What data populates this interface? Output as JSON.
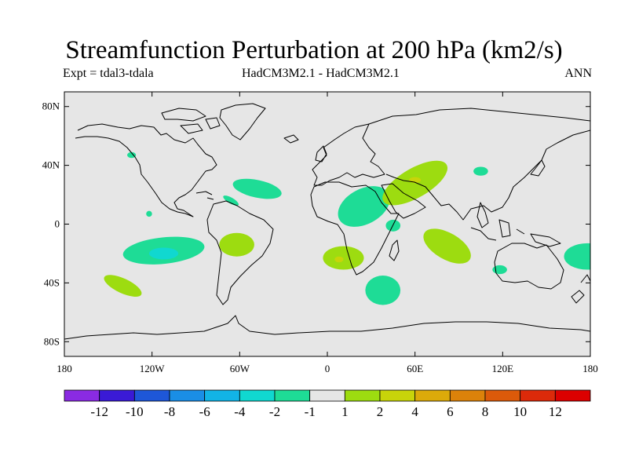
{
  "title": "Streamfunction Perturbation at 200 hPa (km2/s)",
  "subtitle_left": "Expt = tdal3-tdala",
  "subtitle_center": "HadCM3M2.1 - HadCM3M2.1",
  "subtitle_right": "ANN",
  "map": {
    "projection": "equirectangular",
    "lon_range": [
      -180,
      180
    ],
    "lat_range": [
      -90,
      90
    ],
    "background_color": "#e6e6e6",
    "coastline_color": "#000000",
    "lat_ticks": [
      80,
      40,
      0,
      -40,
      -80
    ],
    "lat_tick_labels": [
      "80N",
      "40N",
      "0",
      "40S",
      "80S"
    ],
    "lon_ticks": [
      -180,
      -120,
      -60,
      0,
      60,
      120,
      180
    ],
    "lon_tick_labels": [
      "180",
      "120W",
      "60W",
      "0",
      "60E",
      "120E",
      "180"
    ]
  },
  "chart_data": {
    "type": "heatmap",
    "title": "Streamfunction Perturbation at 200 hPa (km2/s)",
    "units": "km2/s",
    "colorbar_levels": [
      "-12",
      "-10",
      "-8",
      "-6",
      "-4",
      "-2",
      "-1",
      "1",
      "2",
      "4",
      "6",
      "8",
      "10",
      "12"
    ],
    "colorbar_colors": [
      "#8a2be2",
      "#3a1ad6",
      "#1e57d8",
      "#1a8ee6",
      "#12b4e6",
      "#10d8d0",
      "#1edc96",
      "#e6e6e6",
      "#9ddc10",
      "#c8d40a",
      "#dcaa0a",
      "#dc820a",
      "#dc5a0a",
      "#dc2a0a",
      "#dc0000"
    ],
    "regions": [
      {
        "label": "-1 to -2",
        "lon": 178,
        "lat": -22,
        "rx": 16,
        "ry": 9,
        "rot": 0,
        "color": "#1edc96"
      },
      {
        "label": "-1 to -2",
        "lon": -112,
        "lat": -18,
        "rx": 28,
        "ry": 9,
        "rot": 6,
        "color": "#1edc96"
      },
      {
        "label": "-2 to -4",
        "lon": -112,
        "lat": -20,
        "rx": 10,
        "ry": 4,
        "rot": 0,
        "color": "#10d8d0"
      },
      {
        "label": "1 to 2",
        "lon": -140,
        "lat": -42,
        "rx": 14,
        "ry": 5,
        "rot": -25,
        "color": "#9ddc10"
      },
      {
        "label": "1 to 2",
        "lon": -62,
        "lat": -14,
        "rx": 12,
        "ry": 8,
        "rot": 0,
        "color": "#9ddc10"
      },
      {
        "label": "-1 to -2",
        "lon": -48,
        "lat": 24,
        "rx": 17,
        "ry": 6,
        "rot": -12,
        "color": "#1edc96"
      },
      {
        "label": "-1 to -2",
        "lon": -66,
        "lat": 16,
        "rx": 6,
        "ry": 2,
        "rot": -30,
        "color": "#1edc96"
      },
      {
        "label": "-1 to -2",
        "lon": -134,
        "lat": 47,
        "rx": 3,
        "ry": 2,
        "rot": 0,
        "color": "#1edc96"
      },
      {
        "label": "-1 to -2",
        "lon": -122,
        "lat": 7,
        "rx": 2,
        "ry": 2,
        "rot": 0,
        "color": "#1edc96"
      },
      {
        "label": "-1 to -2",
        "lon": 25,
        "lat": 12,
        "rx": 19,
        "ry": 12,
        "rot": 28,
        "color": "#1edc96"
      },
      {
        "label": "-1 to -2",
        "lon": 45,
        "lat": -1,
        "rx": 5,
        "ry": 4,
        "rot": 0,
        "color": "#1edc96"
      },
      {
        "label": "1 to 2",
        "lon": 60,
        "lat": 28,
        "rx": 25,
        "ry": 10,
        "rot": 30,
        "color": "#9ddc10"
      },
      {
        "label": "2 to 4",
        "lon": 60,
        "lat": 30,
        "rx": 4,
        "ry": 2,
        "rot": 0,
        "color": "#c8d40a"
      },
      {
        "label": "-1 to -2",
        "lon": 105,
        "lat": 36,
        "rx": 5,
        "ry": 3,
        "rot": 0,
        "color": "#1edc96"
      },
      {
        "label": "1 to 2",
        "lon": 11,
        "lat": -23,
        "rx": 14,
        "ry": 8,
        "rot": 0,
        "color": "#9ddc10"
      },
      {
        "label": "2 to 4",
        "lon": 8,
        "lat": -24,
        "rx": 3,
        "ry": 2,
        "rot": 0,
        "color": "#c8d40a"
      },
      {
        "label": "-1 to -2",
        "lon": 38,
        "lat": -45,
        "rx": 12,
        "ry": 10,
        "rot": 0,
        "color": "#1edc96"
      },
      {
        "label": "1 to 2",
        "lon": 82,
        "lat": -15,
        "rx": 18,
        "ry": 9,
        "rot": -30,
        "color": "#9ddc10"
      },
      {
        "label": "-1 to -2",
        "lon": 118,
        "lat": -31,
        "rx": 5,
        "ry": 3,
        "rot": 0,
        "color": "#1edc96"
      }
    ]
  }
}
